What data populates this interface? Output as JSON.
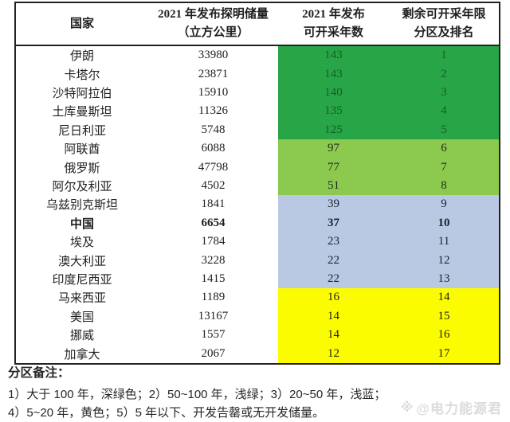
{
  "table": {
    "headers": {
      "country": "国家",
      "reserves_line1": "2021 年发布探明储量",
      "reserves_line2": "（立方公里）",
      "years_line1": "2021 年发布",
      "years_line2": "可开采年数",
      "rank_line1": "剩余可开采年限",
      "rank_line2": "分区及排名"
    },
    "rows": [
      {
        "country": "伊朗",
        "reserves": "33980",
        "years": "143",
        "rank": "1",
        "zone": "dark-green",
        "bold": false
      },
      {
        "country": "卡塔尔",
        "reserves": "23871",
        "years": "143",
        "rank": "2",
        "zone": "dark-green",
        "bold": false
      },
      {
        "country": "沙特阿拉伯",
        "reserves": "15910",
        "years": "140",
        "rank": "3",
        "zone": "dark-green",
        "bold": false
      },
      {
        "country": "土库曼斯坦",
        "reserves": "11326",
        "years": "135",
        "rank": "4",
        "zone": "dark-green",
        "bold": false
      },
      {
        "country": "尼日利亚",
        "reserves": "5748",
        "years": "125",
        "rank": "5",
        "zone": "dark-green",
        "bold": false
      },
      {
        "country": "阿联酋",
        "reserves": "6088",
        "years": "97",
        "rank": "6",
        "zone": "light-green",
        "bold": false
      },
      {
        "country": "俄罗斯",
        "reserves": "47798",
        "years": "77",
        "rank": "7",
        "zone": "light-green",
        "bold": false
      },
      {
        "country": "阿尔及利亚",
        "reserves": "4502",
        "years": "51",
        "rank": "8",
        "zone": "light-green",
        "bold": false
      },
      {
        "country": "乌兹别克斯坦",
        "reserves": "1841",
        "years": "39",
        "rank": "9",
        "zone": "light-blue",
        "bold": false
      },
      {
        "country": "中国",
        "reserves": "6654",
        "years": "37",
        "rank": "10",
        "zone": "light-blue",
        "bold": true
      },
      {
        "country": "埃及",
        "reserves": "1784",
        "years": "23",
        "rank": "11",
        "zone": "light-blue",
        "bold": false
      },
      {
        "country": "澳大利亚",
        "reserves": "3228",
        "years": "22",
        "rank": "12",
        "zone": "light-blue",
        "bold": false
      },
      {
        "country": "印度尼西亚",
        "reserves": "1415",
        "years": "22",
        "rank": "13",
        "zone": "light-blue",
        "bold": false
      },
      {
        "country": "马来西亚",
        "reserves": "1189",
        "years": "16",
        "rank": "14",
        "zone": "yellow",
        "bold": false
      },
      {
        "country": "美国",
        "reserves": "13167",
        "years": "14",
        "rank": "15",
        "zone": "yellow",
        "bold": false
      },
      {
        "country": "挪威",
        "reserves": "1557",
        "years": "14",
        "rank": "16",
        "zone": "yellow",
        "bold": false
      },
      {
        "country": "加拿大",
        "reserves": "2067",
        "years": "12",
        "rank": "17",
        "zone": "yellow",
        "bold": false
      }
    ]
  },
  "legend": {
    "title": "分区备注：",
    "line1": "1）大于 100 年，深绿色；2）50~100 年，浅绿；3）20~50 年，浅蓝；",
    "line2": "4）5~20 年，黄色；5）5 年以下、开发告罄或无开发储量。"
  },
  "watermark": {
    "icon": "※",
    "text": "@电力能源君"
  },
  "colors": {
    "dark_green": "#28A546",
    "dark_green_text": "#11602a",
    "light_green": "#8CC94F",
    "light_blue": "#BAC9E3",
    "yellow": "#FCFC00"
  },
  "chart_data": {
    "type": "table",
    "title": "",
    "columns": [
      "国家",
      "2021 年发布探明储量（立方公里）",
      "2021 年发布可开采年数",
      "剩余可开采年限分区及排名"
    ],
    "rows": [
      [
        "伊朗",
        33980,
        143,
        1
      ],
      [
        "卡塔尔",
        23871,
        143,
        2
      ],
      [
        "沙特阿拉伯",
        15910,
        140,
        3
      ],
      [
        "土库曼斯坦",
        11326,
        135,
        4
      ],
      [
        "尼日利亚",
        5748,
        125,
        5
      ],
      [
        "阿联酋",
        6088,
        97,
        6
      ],
      [
        "俄罗斯",
        47798,
        77,
        7
      ],
      [
        "阿尔及利亚",
        4502,
        51,
        8
      ],
      [
        "乌兹别克斯坦",
        1841,
        39,
        9
      ],
      [
        "中国",
        6654,
        37,
        10
      ],
      [
        "埃及",
        1784,
        23,
        11
      ],
      [
        "澳大利亚",
        3228,
        22,
        12
      ],
      [
        "印度尼西亚",
        1415,
        22,
        13
      ],
      [
        "马来西亚",
        1189,
        16,
        14
      ],
      [
        "美国",
        13167,
        14,
        15
      ],
      [
        "挪威",
        1557,
        14,
        16
      ],
      [
        "加拿大",
        2067,
        12,
        17
      ]
    ],
    "zone_legend": [
      {
        "range": "大于 100 年",
        "color_name": "深绿色",
        "rows": "1-5"
      },
      {
        "range": "50~100 年",
        "color_name": "浅绿",
        "rows": "6-8"
      },
      {
        "range": "20~50 年",
        "color_name": "浅蓝",
        "rows": "9-13"
      },
      {
        "range": "5~20 年",
        "color_name": "黄色",
        "rows": "14-17"
      },
      {
        "range": "5 年以下、开发告罄或无开发储量",
        "color_name": "",
        "rows": ""
      }
    ]
  }
}
